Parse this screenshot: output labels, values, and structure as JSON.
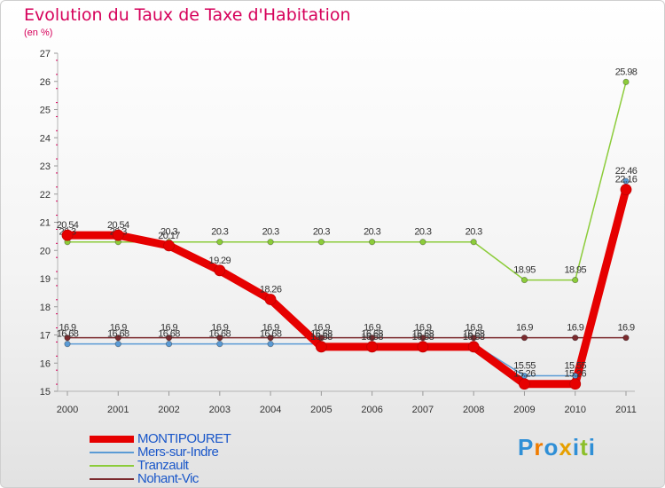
{
  "title": "Evolution du Taux de Taxe d'Habitation",
  "unit": "(en %)",
  "logo": "Proxiti",
  "chart_data": {
    "type": "line",
    "title": "Evolution du Taux de Taxe d'Habitation",
    "ylabel": "(en %)",
    "xlabel": "",
    "categories": [
      "2000",
      "2001",
      "2002",
      "2003",
      "2004",
      "2005",
      "2006",
      "2007",
      "2008",
      "2009",
      "2010",
      "2011"
    ],
    "ylim": [
      15,
      27
    ],
    "yticks": [
      "15",
      "16",
      "17",
      "18",
      "19",
      "20",
      "21",
      "22",
      "23",
      "24",
      "25",
      "26",
      "27"
    ],
    "grid": false,
    "series": [
      {
        "name": "Nohant-Vic",
        "color": "#7b2a2e",
        "values": [
          16.9,
          16.9,
          16.9,
          16.9,
          16.9,
          16.9,
          16.9,
          16.9,
          16.9,
          16.9,
          16.9,
          16.9
        ],
        "labels": [
          "16.9",
          "16.9",
          "16.9",
          "16.9",
          "16.9",
          "16.9",
          "16.9",
          "16.9",
          "16.9",
          "16.9",
          "16.9",
          "16.9"
        ]
      },
      {
        "name": "Mers-sur-Indre",
        "color": "#5b9bd5",
        "values": [
          16.68,
          16.68,
          16.68,
          16.68,
          16.68,
          16.68,
          16.68,
          16.68,
          16.68,
          15.55,
          15.55,
          22.46
        ],
        "labels": [
          "16.68",
          "16.68",
          "16.68",
          "16.68",
          "16.68",
          "16.68",
          "16.68",
          "16.68",
          "16.68",
          "15.55",
          "15.55",
          "22.46"
        ]
      },
      {
        "name": "Tranzault",
        "color": "#8ccc3a",
        "values": [
          20.3,
          20.3,
          20.3,
          20.3,
          20.3,
          20.3,
          20.3,
          20.3,
          20.3,
          18.95,
          18.95,
          25.98
        ],
        "labels": [
          "20.3",
          "20.3",
          "20.3",
          "20.3",
          "20.3",
          "20.3",
          "20.3",
          "20.3",
          "20.3",
          "18.95",
          "18.95",
          "25.98"
        ]
      },
      {
        "name": "MONTIPOURET",
        "color": "#e60000",
        "values": [
          20.54,
          20.54,
          20.17,
          19.29,
          18.26,
          16.58,
          16.58,
          16.58,
          16.58,
          15.26,
          15.26,
          22.16
        ],
        "labels": [
          "20.54",
          "20.54",
          "20.17",
          "19.29",
          "18.26",
          "16.58",
          "16.58",
          "16.58",
          "16.58",
          "15.26",
          "15.26",
          "22.16"
        ]
      }
    ],
    "legend": [
      {
        "name": "MONTIPOURET",
        "color": "#e60000",
        "thick": true
      },
      {
        "name": "Mers-sur-Indre",
        "color": "#5b9bd5",
        "thick": false
      },
      {
        "name": "Tranzault",
        "color": "#8ccc3a",
        "thick": false
      },
      {
        "name": "Nohant-Vic",
        "color": "#7b2a2e",
        "thick": false
      }
    ],
    "legend_position": "bottom-left"
  }
}
